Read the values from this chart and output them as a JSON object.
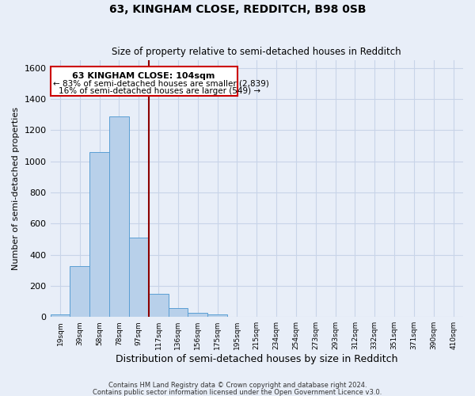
{
  "title": "63, KINGHAM CLOSE, REDDITCH, B98 0SB",
  "subtitle": "Size of property relative to semi-detached houses in Redditch",
  "xlabel": "Distribution of semi-detached houses by size in Redditch",
  "ylabel": "Number of semi-detached properties",
  "bin_labels": [
    "19sqm",
    "39sqm",
    "58sqm",
    "78sqm",
    "97sqm",
    "117sqm",
    "136sqm",
    "156sqm",
    "175sqm",
    "195sqm",
    "215sqm",
    "234sqm",
    "254sqm",
    "273sqm",
    "293sqm",
    "312sqm",
    "332sqm",
    "351sqm",
    "371sqm",
    "390sqm",
    "410sqm"
  ],
  "counts": [
    15,
    325,
    1060,
    1290,
    510,
    150,
    55,
    25,
    15,
    0,
    0,
    0,
    0,
    0,
    0,
    0,
    0,
    0,
    0,
    0,
    0
  ],
  "bar_color": "#b8d0ea",
  "bar_edge_color": "#5a9fd4",
  "vline_x": 4,
  "vline_color": "#8b0000",
  "annotation_title": "63 KINGHAM CLOSE: 104sqm",
  "annotation_line1": "← 83% of semi-detached houses are smaller (2,839)",
  "annotation_line2": "16% of semi-detached houses are larger (549) →",
  "annotation_box_color": "#ffffff",
  "annotation_box_edge": "#cc0000",
  "ylim": [
    0,
    1650
  ],
  "yticks": [
    0,
    200,
    400,
    600,
    800,
    1000,
    1200,
    1400,
    1600
  ],
  "grid_color": "#c8d4e8",
  "background_color": "#e8eef8",
  "footer1": "Contains HM Land Registry data © Crown copyright and database right 2024.",
  "footer2": "Contains public sector information licensed under the Open Government Licence v3.0."
}
